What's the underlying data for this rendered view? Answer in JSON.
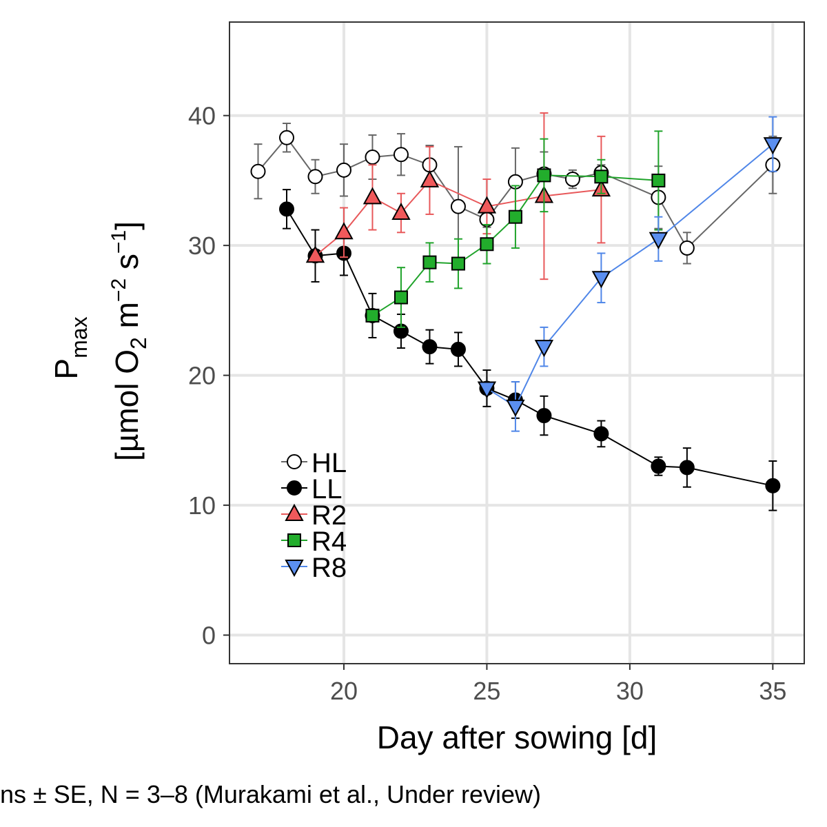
{
  "chart_data": {
    "type": "line",
    "xlabel": "Day after sowing [d]",
    "ylabel": {
      "line1_main": "P",
      "line1_sub": "max",
      "line2_prefix": "[µmol O",
      "line2_o2_sub": "2",
      "line2_mid": " m",
      "line2_m_sup": "−2",
      "line2_s": " s",
      "line2_s_sup": "−1",
      "line2_suffix": "]"
    },
    "xlim": [
      16,
      36.1
    ],
    "ylim": [
      -2.2,
      47.2
    ],
    "xticks": [
      20,
      25,
      30,
      35
    ],
    "yticks": [
      0,
      10,
      20,
      30,
      40
    ],
    "grid": true,
    "legend_position": "bottom-left",
    "caption": "ns ± SE, N = 3–8 (Murakami et al., Under review)",
    "series": [
      {
        "name": "HL",
        "color": "#666666",
        "marker": "circle",
        "fill": "#ffffff",
        "x": [
          17,
          18,
          19,
          20,
          21,
          22,
          23,
          24,
          25,
          26,
          27,
          28,
          29,
          31,
          32,
          35
        ],
        "y": [
          35.7,
          38.3,
          35.3,
          35.8,
          36.8,
          37.0,
          36.2,
          33.0,
          32.0,
          34.9,
          35.5,
          35.1,
          35.6,
          33.7,
          29.8,
          36.2
        ],
        "err": [
          2.1,
          1.1,
          1.3,
          2.0,
          1.7,
          1.6,
          1.5,
          4.6,
          0.6,
          2.6,
          1.7,
          0.7,
          0.6,
          2.4,
          1.2,
          2.2
        ]
      },
      {
        "name": "LL",
        "color": "#000000",
        "marker": "circle",
        "fill": "#000000",
        "x": [
          18,
          19,
          20,
          21,
          22,
          23,
          24,
          25,
          26,
          27,
          29,
          31,
          32,
          35
        ],
        "y": [
          32.8,
          29.2,
          29.4,
          24.6,
          23.4,
          22.2,
          22.0,
          19.0,
          18.1,
          16.9,
          15.5,
          13.0,
          12.9,
          11.5
        ],
        "err": [
          1.5,
          2.0,
          1.7,
          1.7,
          1.3,
          1.3,
          1.3,
          1.4,
          1.4,
          1.5,
          1.0,
          0.7,
          1.5,
          1.9
        ]
      },
      {
        "name": "R2",
        "color": "#e8585a",
        "marker": "triangle-up",
        "fill": "#f0595b",
        "x": [
          19,
          20,
          21,
          22,
          23,
          25,
          27,
          29
        ],
        "y": [
          29.2,
          31.0,
          33.7,
          32.5,
          35.0,
          33.0,
          33.8,
          34.3
        ],
        "err": [
          0,
          1.9,
          2.5,
          1.5,
          2.6,
          2.1,
          6.4,
          4.1
        ]
      },
      {
        "name": "R4",
        "color": "#1fa32a",
        "marker": "square",
        "fill": "#22ad2c",
        "x": [
          21,
          22,
          23,
          24,
          25,
          26,
          27,
          29,
          31
        ],
        "y": [
          24.6,
          26.0,
          28.7,
          28.6,
          30.1,
          32.2,
          35.4,
          35.3,
          35.0
        ],
        "err": [
          0,
          2.3,
          1.5,
          1.9,
          1.5,
          2.4,
          2.8,
          1.3,
          3.8
        ]
      },
      {
        "name": "R8",
        "color": "#4f86e8",
        "marker": "triangle-down",
        "fill": "#5b8ff0",
        "x": [
          25,
          26,
          27,
          29,
          31,
          35
        ],
        "y": [
          19.0,
          17.6,
          22.2,
          27.5,
          30.5,
          37.8
        ],
        "err": [
          0,
          1.9,
          1.5,
          1.9,
          1.7,
          2.1
        ]
      }
    ]
  }
}
